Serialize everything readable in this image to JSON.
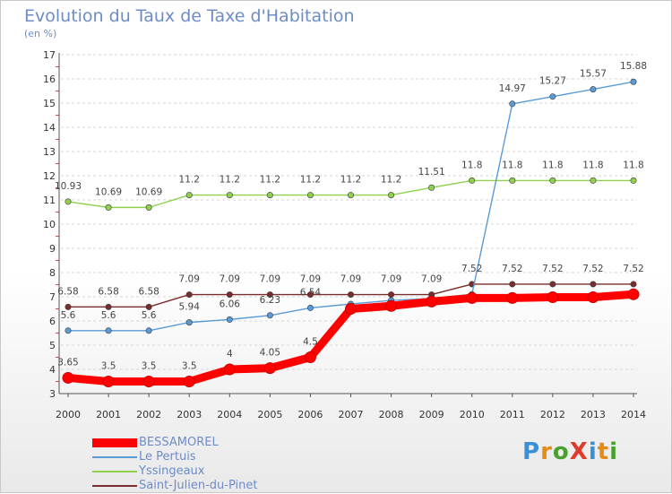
{
  "title": "Evolution du Taux de Taxe d'Habitation",
  "unit_label": "(en %)",
  "logo_text": "ProXiti",
  "chart_data": {
    "type": "line",
    "title": "Evolution du Taux de Taxe d'Habitation",
    "ylabel": "(en %)",
    "xlabel": "",
    "ylim": [
      3,
      17
    ],
    "yticks": [
      3,
      4,
      5,
      6,
      7,
      8,
      9,
      10,
      11,
      12,
      13,
      14,
      15,
      16,
      17
    ],
    "x": [
      "2000",
      "2001",
      "2002",
      "2003",
      "2004",
      "2005",
      "2006",
      "2007",
      "2008",
      "2009",
      "2010",
      "2011",
      "2012",
      "2013",
      "2014"
    ],
    "grid": "horizontal dashed",
    "legend_position": "bottom-left",
    "series": [
      {
        "name": "BESSAMOREL",
        "color": "#ff0000",
        "values": [
          3.65,
          3.5,
          3.5,
          3.5,
          4,
          4.05,
          4.5,
          6.5,
          6.62,
          6.8,
          6.95,
          6.95,
          6.98,
          6.98,
          7.1
        ],
        "labels": [
          "3.65",
          "3.5",
          "3.5",
          "3.5",
          "4",
          "4.05",
          "4.5",
          "",
          "",
          "",
          "",
          "",
          "",
          "",
          ""
        ]
      },
      {
        "name": "Le Pertuis",
        "color": "#5b9bd5",
        "values": [
          5.6,
          5.6,
          5.6,
          5.94,
          6.06,
          6.23,
          6.54,
          6.7,
          6.85,
          6.93,
          7.1,
          14.97,
          15.27,
          15.57,
          15.88
        ],
        "labels": [
          "5.6",
          "5.6",
          "5.6",
          "5.94",
          "6.06",
          "6.23",
          "6.54",
          "",
          "",
          "",
          "",
          "14.97",
          "15.27",
          "15.57",
          "15.88"
        ]
      },
      {
        "name": "Yssingeaux",
        "color": "#8fd14f",
        "values": [
          10.93,
          10.69,
          10.69,
          11.2,
          11.2,
          11.2,
          11.2,
          11.2,
          11.2,
          11.51,
          11.8,
          11.8,
          11.8,
          11.8,
          11.8
        ],
        "labels": [
          "10.93",
          "10.69",
          "10.69",
          "11.2",
          "11.2",
          "11.2",
          "11.2",
          "11.2",
          "11.2",
          "11.51",
          "11.8",
          "11.8",
          "11.8",
          "11.8",
          "11.8"
        ]
      },
      {
        "name": "Saint-Julien-du-Pinet",
        "color": "#7b2d2d",
        "values": [
          6.58,
          6.58,
          6.58,
          7.09,
          7.09,
          7.09,
          7.09,
          7.09,
          7.09,
          7.09,
          7.52,
          7.52,
          7.52,
          7.52,
          7.52
        ],
        "labels": [
          "6.58",
          "6.58",
          "6.58",
          "7.09",
          "7.09",
          "7.09",
          "7.09",
          "7.09",
          "7.09",
          "7.09",
          "7.52",
          "7.52",
          "7.52",
          "7.52",
          "7.52"
        ]
      }
    ]
  }
}
